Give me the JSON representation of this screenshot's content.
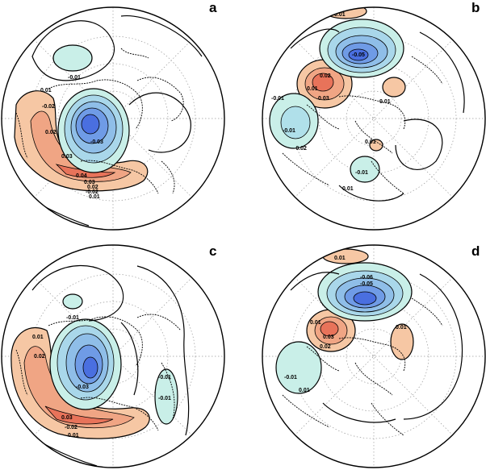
{
  "colors": {
    "positive_fill": "#f2b38f",
    "positive_core": "#e8735a",
    "negative_fill": "#c9efe8",
    "negative_core": "#5577e0",
    "contour_line": "#000000",
    "latitude_grid": "#9a9a9a"
  },
  "panels": [
    {
      "letter": "a",
      "contour_labels": [
        "-0.01",
        "0.01",
        "-0.02",
        "0.02",
        "0.03",
        "0.04",
        "-0.03",
        "0.03",
        "0.02",
        "-0.02",
        "0.01"
      ]
    },
    {
      "letter": "b",
      "contour_labels": [
        "0.01",
        "-0.05",
        "0.02",
        "0.01",
        "0.03",
        "0.01",
        "-0.01",
        "-0.02",
        "0.01",
        "-0.01",
        "0.01",
        "-0.01"
      ]
    },
    {
      "letter": "c",
      "contour_labels": [
        "0.01",
        "0.02",
        "-0.01",
        "-0.03",
        "0.03",
        "-0.02",
        "0.01",
        "-0.01",
        "-0.01"
      ]
    },
    {
      "letter": "d",
      "contour_labels": [
        "0.01",
        "-0.06",
        "-0.05",
        "0.01",
        "0.03",
        "0.02",
        "0.01",
        "-0.01",
        "0.01"
      ]
    }
  ]
}
